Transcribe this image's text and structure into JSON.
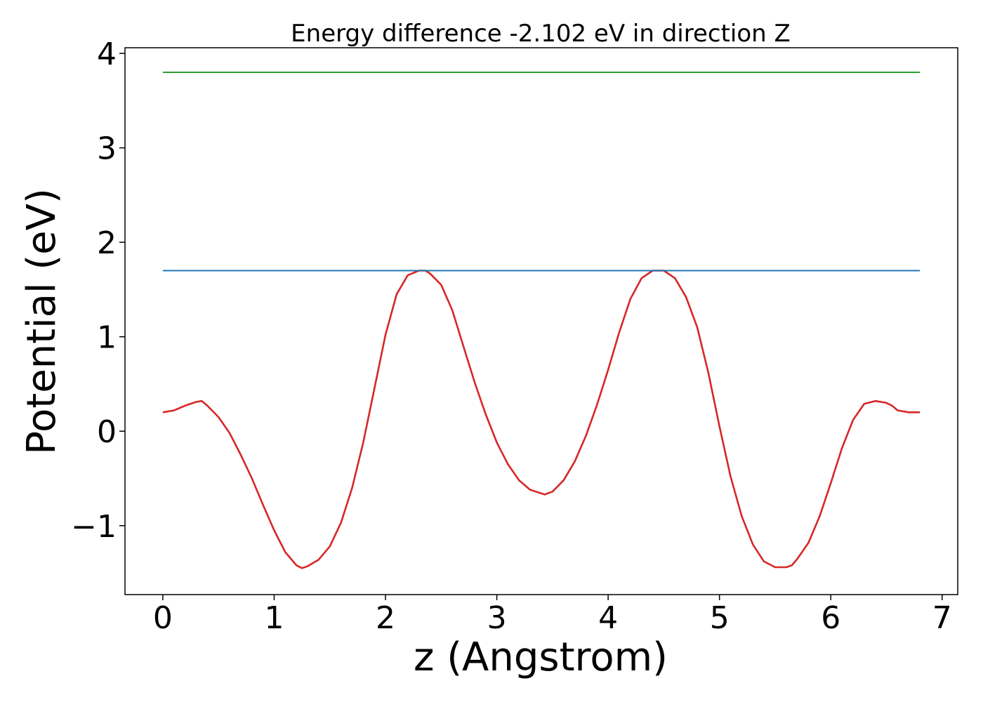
{
  "chart_data": {
    "type": "line",
    "title": "Energy difference -2.102 eV in direction Z",
    "xlabel": "z (Angstrom)",
    "ylabel": "Potential (eV)",
    "xlim": [
      -0.34,
      7.14
    ],
    "ylim": [
      -1.73,
      4.06
    ],
    "xticks": [
      0,
      1,
      2,
      3,
      4,
      5,
      6,
      7
    ],
    "xtick_labels": [
      "0",
      "1",
      "2",
      "3",
      "4",
      "5",
      "6",
      "7"
    ],
    "yticks": [
      -1,
      0,
      1,
      2,
      3,
      4
    ],
    "ytick_labels": [
      "−1",
      "0",
      "1",
      "2",
      "3",
      "4"
    ],
    "grid": false,
    "series": [
      {
        "color": "#d62728",
        "x": [
          0.0,
          0.1,
          0.2,
          0.3,
          0.35,
          0.4,
          0.5,
          0.6,
          0.7,
          0.8,
          0.9,
          1.0,
          1.1,
          1.2,
          1.25,
          1.3,
          1.4,
          1.5,
          1.6,
          1.7,
          1.8,
          1.9,
          2.0,
          2.1,
          2.2,
          2.3,
          2.36,
          2.4,
          2.5,
          2.6,
          2.7,
          2.8,
          2.9,
          3.0,
          3.1,
          3.2,
          3.3,
          3.43,
          3.5,
          3.6,
          3.7,
          3.8,
          3.9,
          4.0,
          4.1,
          4.2,
          4.3,
          4.4,
          4.5,
          4.6,
          4.7,
          4.8,
          4.9,
          5.0,
          5.1,
          5.2,
          5.3,
          5.4,
          5.5,
          5.6,
          5.65,
          5.7,
          5.8,
          5.9,
          6.0,
          6.1,
          6.2,
          6.3,
          6.4,
          6.5,
          6.55,
          6.6,
          6.7,
          6.8
        ],
        "y": [
          0.2,
          0.22,
          0.27,
          0.31,
          0.32,
          0.27,
          0.15,
          -0.02,
          -0.25,
          -0.5,
          -0.78,
          -1.05,
          -1.28,
          -1.42,
          -1.45,
          -1.43,
          -1.36,
          -1.22,
          -0.97,
          -0.6,
          -0.12,
          0.45,
          1.02,
          1.45,
          1.65,
          1.7,
          1.7,
          1.67,
          1.55,
          1.28,
          0.9,
          0.52,
          0.18,
          -0.12,
          -0.35,
          -0.52,
          -0.62,
          -0.67,
          -0.64,
          -0.52,
          -0.32,
          -0.05,
          0.28,
          0.65,
          1.05,
          1.4,
          1.62,
          1.7,
          1.7,
          1.62,
          1.42,
          1.1,
          0.62,
          0.05,
          -0.48,
          -0.9,
          -1.2,
          -1.38,
          -1.44,
          -1.44,
          -1.42,
          -1.35,
          -1.18,
          -0.9,
          -0.55,
          -0.18,
          0.12,
          0.29,
          0.32,
          0.3,
          0.27,
          0.22,
          0.2,
          0.2
        ]
      },
      {
        "color": "#1f77b4",
        "x": [
          0.0,
          6.8
        ],
        "y": [
          1.7,
          1.7
        ]
      },
      {
        "color": "#2ca02c",
        "x": [
          0.0,
          6.8
        ],
        "y": [
          3.8,
          3.8
        ]
      }
    ]
  }
}
